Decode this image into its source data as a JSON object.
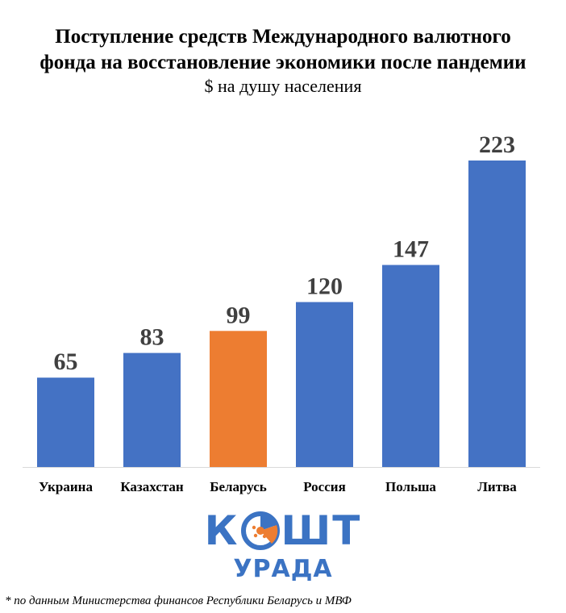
{
  "chart_data": {
    "type": "bar",
    "title_line1": "Поступление средств Международного валютного",
    "title_line2": "фонда на восстановление экономики после пандемии",
    "subtitle": "$ на душу населения",
    "categories": [
      "Украина",
      "Казахстан",
      "Беларусь",
      "Россия",
      "Польша",
      "Литва"
    ],
    "values": [
      65,
      83,
      99,
      120,
      147,
      223
    ],
    "colors": [
      "#4472c4",
      "#4472c4",
      "#ed7d31",
      "#4472c4",
      "#4472c4",
      "#4472c4"
    ],
    "ylim": [
      0,
      223
    ],
    "grid": false,
    "legend": "none"
  },
  "logo": {
    "word_left": "К",
    "word_right": "ШТ",
    "word_bottom": "УРАДА",
    "icon": "coin-icon",
    "color": "#3b73c3",
    "accent": "#ed7d31"
  },
  "footnote": "* по данным Министерства финансов Республики Беларусь и МВФ"
}
